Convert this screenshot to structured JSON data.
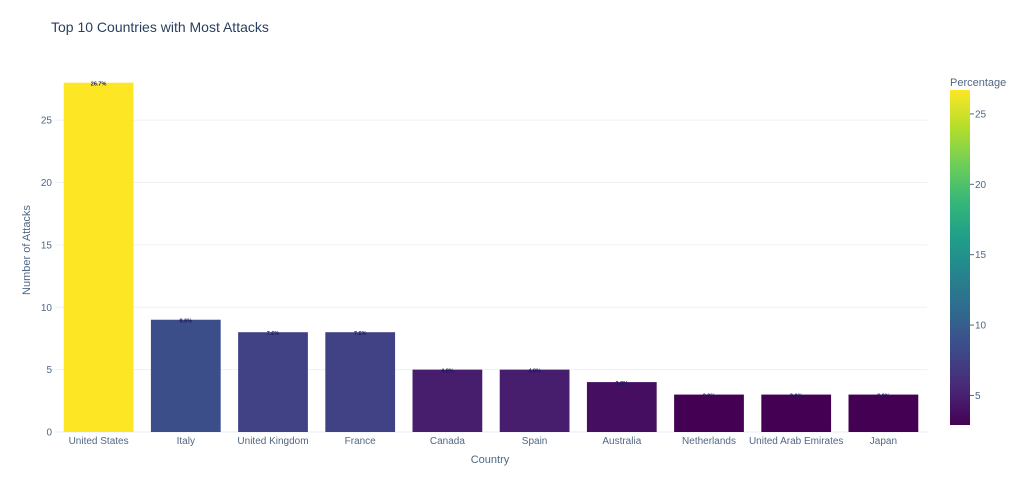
{
  "chart_data": {
    "type": "bar",
    "title": "Top 10 Countries with Most Attacks",
    "xlabel": "Country",
    "ylabel": "Number of Attacks",
    "categories": [
      "United States",
      "Italy",
      "United Kingdom",
      "France",
      "Canada",
      "Spain",
      "Australia",
      "Netherlands",
      "United Arab Emirates",
      "Japan"
    ],
    "values": [
      28,
      9,
      8,
      8,
      5,
      5,
      4,
      3,
      3,
      3
    ],
    "percent_labels": [
      "26.7%",
      "8.6%",
      "7.6%",
      "7.6%",
      "4.8%",
      "4.8%",
      "3.8%",
      "2.9%",
      "2.9%",
      "2.9%"
    ],
    "color_values": [
      26.7,
      8.6,
      7.6,
      7.6,
      4.8,
      4.8,
      3.8,
      2.9,
      2.9,
      2.9
    ],
    "ylim": [
      0,
      29.5
    ],
    "yticks": [
      0,
      5,
      10,
      15,
      20,
      25
    ],
    "grid": true,
    "colorbar": {
      "title": "Percentage",
      "range": [
        2.9,
        26.7
      ],
      "ticks": [
        5,
        10,
        15,
        20,
        25
      ],
      "colorscale": "viridis"
    }
  }
}
